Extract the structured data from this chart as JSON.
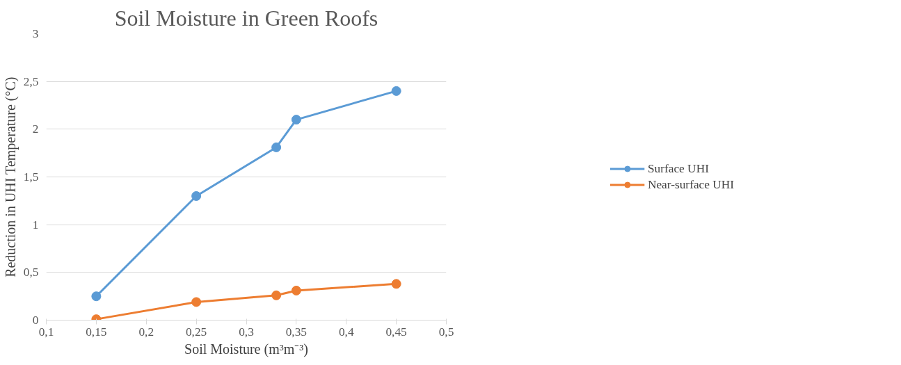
{
  "chart_data": {
    "type": "line",
    "title": "Soil Moisture in Green Roofs",
    "xlabel": "Soil Moisture (m³m⁻³)",
    "ylabel": "Reduction in UHI Temperature (°C)",
    "x": [
      0.15,
      0.25,
      0.33,
      0.35,
      0.45
    ],
    "series": [
      {
        "name": "Surface UHI",
        "color": "#5b9bd5",
        "values": [
          0.25,
          1.3,
          1.81,
          2.1,
          2.4
        ]
      },
      {
        "name": "Near-surface UHI",
        "color": "#ed7d31",
        "values": [
          0.01,
          0.19,
          0.26,
          0.31,
          0.38
        ]
      }
    ],
    "xlim": [
      0.1,
      0.5
    ],
    "xticks": [
      {
        "value": 0.1,
        "label": "0,1"
      },
      {
        "value": 0.15,
        "label": "0,15"
      },
      {
        "value": 0.2,
        "label": "0,2"
      },
      {
        "value": 0.25,
        "label": "0,25"
      },
      {
        "value": 0.3,
        "label": "0,3"
      },
      {
        "value": 0.35,
        "label": "0,35"
      },
      {
        "value": 0.4,
        "label": "0,4"
      },
      {
        "value": 0.45,
        "label": "0,45"
      },
      {
        "value": 0.5,
        "label": "0,5"
      }
    ],
    "ylim": [
      0,
      3
    ],
    "yticks": [
      0,
      {
        "value": 0.5,
        "label": "0,5"
      },
      1,
      {
        "value": 1.5,
        "label": "1,5"
      },
      2,
      {
        "value": 2.5,
        "label": "2,5"
      },
      3
    ],
    "grid": "y",
    "legend": "right",
    "marker": "circle",
    "line_style": "solid"
  }
}
